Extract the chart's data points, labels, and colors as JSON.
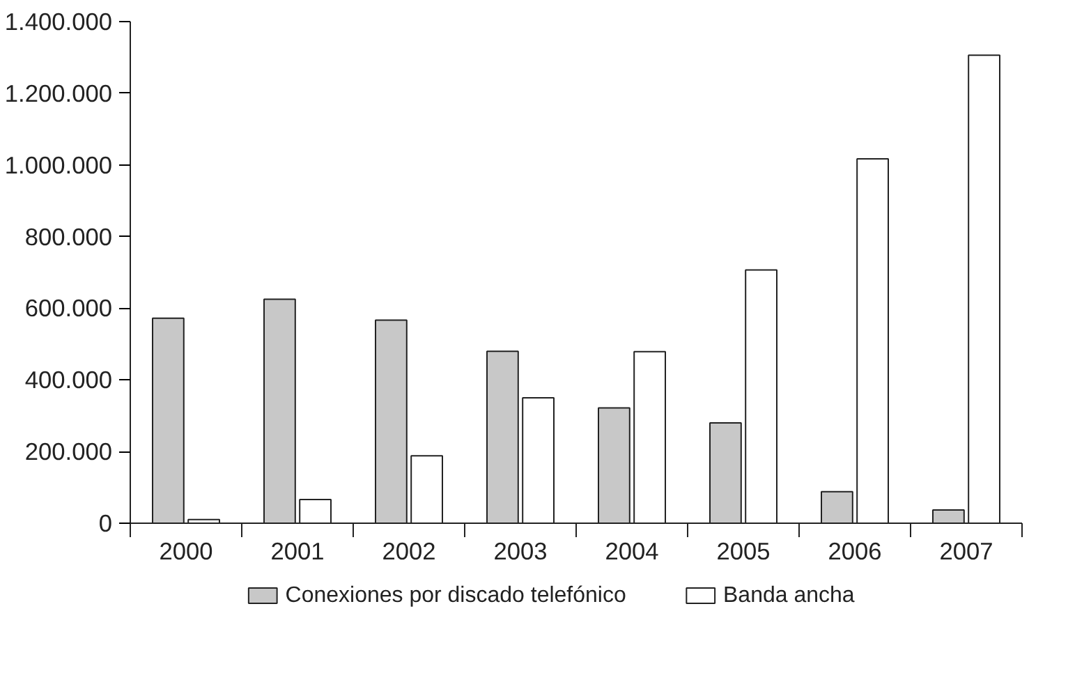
{
  "chart_data": {
    "type": "bar",
    "categories": [
      "2000",
      "2001",
      "2002",
      "2003",
      "2004",
      "2005",
      "2006",
      "2007"
    ],
    "series": [
      {
        "name": "Conexiones por discado telefónico",
        "color": "#c8c8c8",
        "values": [
          572000,
          625000,
          567000,
          480000,
          322000,
          280000,
          88000,
          37000
        ]
      },
      {
        "name": "Banda ancha",
        "color": "#ffffff",
        "values": [
          10000,
          66000,
          188000,
          350000,
          479000,
          707000,
          1017000,
          1306000
        ]
      }
    ],
    "ylim": [
      0,
      1400000
    ],
    "yticks": [
      {
        "value": 0,
        "label": "0"
      },
      {
        "value": 200000,
        "label": "200.000"
      },
      {
        "value": 400000,
        "label": "400.000"
      },
      {
        "value": 600000,
        "label": "600.000"
      },
      {
        "value": 800000,
        "label": "800.000"
      },
      {
        "value": 1000000,
        "label": "1.000.000"
      },
      {
        "value": 1200000,
        "label": "1.200.000"
      },
      {
        "value": 1400000,
        "label": "1.400.000"
      }
    ],
    "grid": false,
    "legend": "bottom"
  }
}
